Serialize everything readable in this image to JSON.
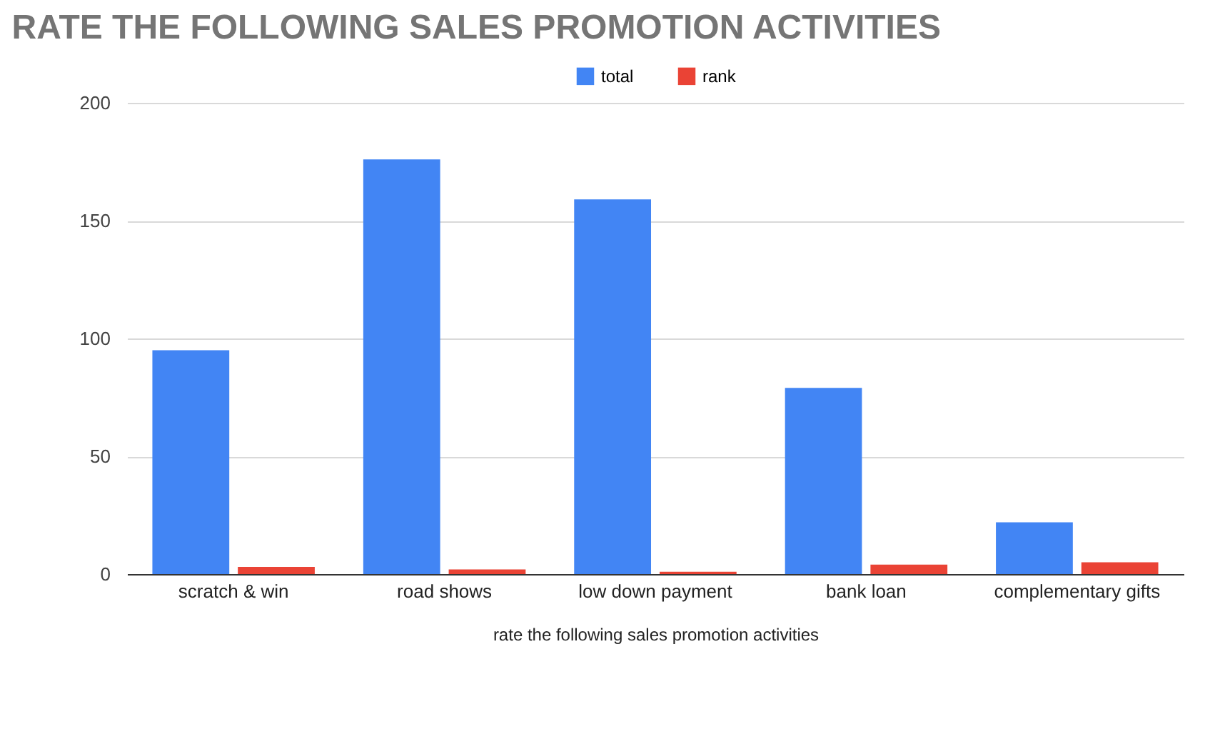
{
  "chart_data": {
    "type": "bar",
    "title": "RATE THE FOLLOWING SALES PROMOTION ACTIVITIES",
    "xlabel": "rate the following sales promotion activities",
    "categories": [
      "scratch & win",
      "road shows",
      "low down payment",
      "bank loan",
      "complementary gifts"
    ],
    "series": [
      {
        "name": "total",
        "color": "#4285f4",
        "values": [
          95,
          176,
          159,
          79,
          22
        ]
      },
      {
        "name": "rank",
        "color": "#ea4335",
        "values": [
          3,
          2,
          1,
          4,
          5
        ]
      }
    ],
    "ylim": [
      0,
      200
    ],
    "yticks": [
      0,
      50,
      100,
      150,
      200
    ],
    "grid": "y",
    "legend": "top"
  }
}
